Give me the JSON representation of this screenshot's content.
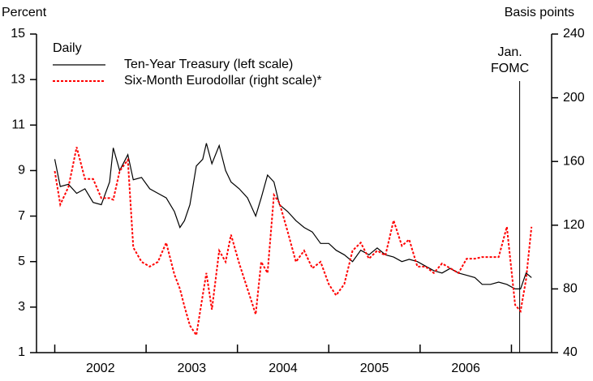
{
  "chart_data": {
    "type": "line",
    "y_label": "Percent",
    "y2_label": "Basis points",
    "legend_title": "Daily",
    "legend": "upper left",
    "categories": [
      "2002",
      "2003",
      "2004",
      "2005",
      "2006"
    ],
    "xlim": [
      2001.8,
      2007.44
    ],
    "xticks": [
      2002,
      2003,
      2004,
      2005,
      2006,
      2007
    ],
    "ylim": [
      1,
      15
    ],
    "yticks": [
      1,
      3,
      5,
      7,
      9,
      11,
      13,
      15
    ],
    "y2lim": [
      40,
      240
    ],
    "y2ticks": [
      40,
      80,
      120,
      160,
      200,
      240
    ],
    "annotations": [
      {
        "lines": [
          "Jan.",
          "FOMC"
        ],
        "x": 2007.09
      }
    ],
    "x": [
      2002.0,
      2002.06,
      2002.15,
      2002.24,
      2002.33,
      2002.42,
      2002.51,
      2002.6,
      2002.64,
      2002.71,
      2002.8,
      2002.86,
      2002.95,
      2003.04,
      2003.13,
      2003.22,
      2003.31,
      2003.37,
      2003.42,
      2003.48,
      2003.55,
      2003.62,
      2003.66,
      2003.72,
      2003.8,
      2003.87,
      2003.93,
      2004.02,
      2004.11,
      2004.2,
      2004.26,
      2004.33,
      2004.4,
      2004.46,
      2004.55,
      2004.64,
      2004.73,
      2004.82,
      2004.91,
      2005.0,
      2005.08,
      2005.17,
      2005.26,
      2005.35,
      2005.44,
      2005.53,
      2005.62,
      2005.71,
      2005.8,
      2005.88,
      2005.97,
      2006.06,
      2006.15,
      2006.24,
      2006.33,
      2006.42,
      2006.51,
      2006.6,
      2006.68,
      2006.77,
      2006.86,
      2006.95,
      2007.04,
      2007.1,
      2007.16,
      2007.22
    ],
    "series": [
      {
        "name": "Ten-Year Treasury (left scale)",
        "color": "#000000",
        "dash": false,
        "values": [
          9.5,
          8.3,
          8.4,
          8.0,
          8.2,
          7.6,
          7.5,
          8.5,
          10.0,
          9.0,
          9.7,
          8.6,
          8.7,
          8.2,
          8.0,
          7.8,
          7.2,
          6.5,
          6.8,
          7.5,
          9.2,
          9.5,
          10.2,
          9.3,
          10.1,
          9.0,
          8.5,
          8.2,
          7.8,
          7.0,
          7.8,
          8.8,
          8.5,
          7.5,
          7.2,
          6.8,
          6.5,
          6.3,
          5.8,
          5.8,
          5.5,
          5.3,
          5.0,
          5.5,
          5.3,
          5.6,
          5.3,
          5.2,
          5.0,
          5.1,
          5.0,
          4.8,
          4.6,
          4.5,
          4.7,
          4.5,
          4.4,
          4.3,
          4.0,
          4.0,
          4.1,
          4.0,
          3.8,
          3.8,
          4.5,
          4.3
        ]
      },
      {
        "name": "Six-Month Eurodollar (right scale)*",
        "color": "#ff0000",
        "dash": true,
        "axis": "y2",
        "values": [
          154,
          133,
          144,
          169,
          149,
          149,
          137,
          137,
          136,
          154,
          161,
          106,
          97,
          94,
          97,
          109,
          89,
          80,
          69,
          57,
          51,
          76,
          90,
          67,
          104,
          97,
          114,
          96,
          80,
          64,
          97,
          90,
          139,
          134,
          116,
          97,
          104,
          93,
          97,
          83,
          76,
          83,
          104,
          109,
          99,
          104,
          101,
          123,
          107,
          111,
          94,
          94,
          90,
          96,
          93,
          90,
          99,
          99,
          100,
          100,
          100,
          119,
          70,
          66,
          86,
          119
        ]
      }
    ]
  }
}
